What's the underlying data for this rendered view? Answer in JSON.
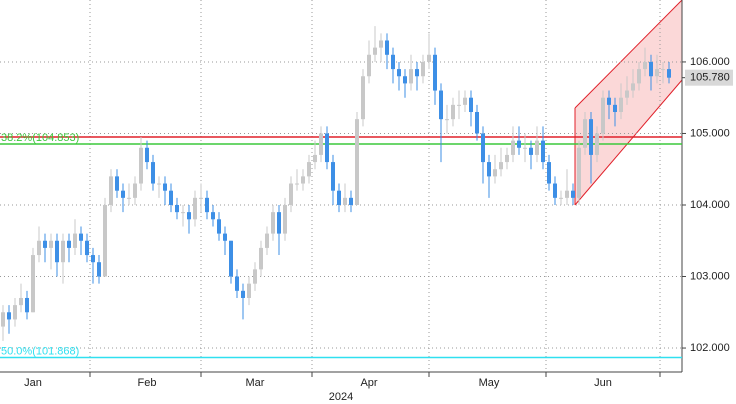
{
  "chart_data": {
    "type": "candlestick",
    "open": [
      102.3,
      102.5,
      102.4,
      102.6,
      102.7,
      102.5,
      103.3,
      103.5,
      103.4,
      103.5,
      103.2,
      103.5,
      103.4,
      103.6,
      103.5,
      103.3,
      103.2,
      103.0,
      104.0,
      104.4,
      104.2,
      104.1,
      104.1,
      104.3,
      104.8,
      104.6,
      104.3,
      104.3,
      104.2,
      104.0,
      103.9,
      103.9,
      103.8,
      104.1,
      104.1,
      103.9,
      103.8,
      103.6,
      103.5,
      103.0,
      102.8,
      102.7,
      102.9,
      103.1,
      103.4,
      103.6,
      103.9,
      103.6,
      104.0,
      104.3,
      104.3,
      104.4,
      104.6,
      104.7,
      105.0,
      104.6,
      104.2,
      104.0,
      104.1,
      104.0,
      105.2,
      105.8,
      106.1,
      106.2,
      106.3,
      106.1,
      105.9,
      105.8,
      105.7,
      105.9,
      105.8,
      106.0,
      106.1,
      105.6,
      105.2,
      105.2,
      105.4,
      105.4,
      105.5,
      105.3,
      105.0,
      104.6,
      104.4,
      104.5,
      104.6,
      104.7,
      104.9,
      104.8,
      104.8,
      104.7,
      104.9,
      104.6,
      104.3,
      104.1,
      104.1,
      104.2,
      104.1,
      104.8,
      105.2,
      104.7,
      105.0,
      105.5,
      105.4,
      105.3,
      105.5,
      105.6,
      105.7,
      105.9,
      106.0,
      105.8,
      105.9,
      105.9
    ],
    "high": [
      102.6,
      102.6,
      102.7,
      102.9,
      102.8,
      103.4,
      103.7,
      103.6,
      103.6,
      103.6,
      103.6,
      103.6,
      103.8,
      103.7,
      103.6,
      103.4,
      103.3,
      104.1,
      104.5,
      104.5,
      104.3,
      104.3,
      104.4,
      104.95,
      104.9,
      104.7,
      104.4,
      104.4,
      104.3,
      104.1,
      104.0,
      104.0,
      104.2,
      104.3,
      104.2,
      104.0,
      103.9,
      103.7,
      103.5,
      103.1,
      102.9,
      103.0,
      103.2,
      103.5,
      103.7,
      104.0,
      104.0,
      104.1,
      104.4,
      104.5,
      104.5,
      104.7,
      104.9,
      105.1,
      105.1,
      104.7,
      104.3,
      104.3,
      104.2,
      105.3,
      105.9,
      106.3,
      106.5,
      106.4,
      106.4,
      106.2,
      106.0,
      105.9,
      106.1,
      106.0,
      106.1,
      106.4,
      106.2,
      105.7,
      105.4,
      105.5,
      105.6,
      105.6,
      105.6,
      105.4,
      105.1,
      104.7,
      104.7,
      104.8,
      104.8,
      105.1,
      105.1,
      105.0,
      104.9,
      105.1,
      105.1,
      104.7,
      104.4,
      104.2,
      104.5,
      104.3,
      104.9,
      105.3,
      105.3,
      105.1,
      105.6,
      105.6,
      105.5,
      105.7,
      105.8,
      105.9,
      106.0,
      106.2,
      106.1,
      106.1,
      106.0,
      106.0
    ],
    "low": [
      102.1,
      102.2,
      102.3,
      102.5,
      102.4,
      102.5,
      103.2,
      103.2,
      103.1,
      103.0,
      102.9,
      103.2,
      103.3,
      103.3,
      103.2,
      102.9,
      102.9,
      103.0,
      103.9,
      104.1,
      103.9,
      104.0,
      104.0,
      104.2,
      104.5,
      104.2,
      104.1,
      104.0,
      103.9,
      103.8,
      103.7,
      103.6,
      103.7,
      103.9,
      103.8,
      103.7,
      103.5,
      103.3,
      102.9,
      102.7,
      102.4,
      102.6,
      102.8,
      103.0,
      103.3,
      103.5,
      103.3,
      103.5,
      103.9,
      104.2,
      104.2,
      104.3,
      104.5,
      104.6,
      104.5,
      104.0,
      103.9,
      103.9,
      103.9,
      104.0,
      105.1,
      105.7,
      106.0,
      106.0,
      105.9,
      105.7,
      105.6,
      105.5,
      105.6,
      105.6,
      105.7,
      105.9,
      105.4,
      104.6,
      105.0,
      105.1,
      105.2,
      105.3,
      105.1,
      104.9,
      104.3,
      104.1,
      104.3,
      104.4,
      104.5,
      104.6,
      104.7,
      104.6,
      104.5,
      104.6,
      104.5,
      104.2,
      104.0,
      104.0,
      104.0,
      104.0,
      104.0,
      104.7,
      104.3,
      104.6,
      104.9,
      105.2,
      105.1,
      105.2,
      105.4,
      105.5,
      105.6,
      105.8,
      105.6,
      105.7,
      105.7,
      105.7
    ],
    "close": [
      102.5,
      102.4,
      102.6,
      102.7,
      102.5,
      103.3,
      103.5,
      103.4,
      103.5,
      103.2,
      103.5,
      103.4,
      103.6,
      103.5,
      103.3,
      103.2,
      103.0,
      104.0,
      104.4,
      104.2,
      104.1,
      104.1,
      104.3,
      104.8,
      104.6,
      104.3,
      104.3,
      104.2,
      104.0,
      103.9,
      103.9,
      103.8,
      104.1,
      104.1,
      103.9,
      103.8,
      103.6,
      103.5,
      103.0,
      102.8,
      102.7,
      102.9,
      103.1,
      103.4,
      103.6,
      103.9,
      103.6,
      104.0,
      104.3,
      104.3,
      104.4,
      104.6,
      104.7,
      105.0,
      104.6,
      104.2,
      104.0,
      104.1,
      104.0,
      105.2,
      105.8,
      106.1,
      106.2,
      106.3,
      106.1,
      105.9,
      105.8,
      105.7,
      105.9,
      105.8,
      106.0,
      106.1,
      105.6,
      105.2,
      105.2,
      105.4,
      105.4,
      105.5,
      105.3,
      105.0,
      104.6,
      104.4,
      104.5,
      104.6,
      104.7,
      104.9,
      104.8,
      104.8,
      104.7,
      104.9,
      104.6,
      104.3,
      104.1,
      104.1,
      104.2,
      104.1,
      104.8,
      105.2,
      104.7,
      105.0,
      105.5,
      105.4,
      105.3,
      105.5,
      105.6,
      105.7,
      105.9,
      106.0,
      105.8,
      105.9,
      105.9,
      105.78
    ],
    "up_color": "#c8c8c8",
    "down_color": "#3d8fe6",
    "xticks": [
      {
        "value": 5,
        "label": "Jan"
      },
      {
        "value": 24,
        "label": "Feb"
      },
      {
        "value": 42,
        "label": "Mar"
      },
      {
        "value": 61,
        "label": "Apr"
      },
      {
        "value": 81,
        "label": "May"
      },
      {
        "value": 100,
        "label": "Jun"
      }
    ],
    "xlabel": "2024",
    "ylim": [
      101.665,
      106.866
    ],
    "yticks": [
      {
        "value": 102,
        "label": "102.000"
      },
      {
        "value": 103,
        "label": "103.000"
      },
      {
        "value": 104,
        "label": "104.000"
      },
      {
        "value": 105,
        "label": "105.000"
      },
      {
        "value": 106,
        "label": "106.000"
      }
    ],
    "levels": [
      {
        "value": 104.95,
        "color": "#e0202a"
      },
      {
        "value": 104.853,
        "label": "38.2%(104.853)",
        "color": "#3cc83c"
      },
      {
        "value": 101.868,
        "label": "50.0%(101.868)",
        "color": "#30e0f0"
      }
    ],
    "last_price": {
      "value": 105.78,
      "label": "105.780"
    },
    "grid": true
  }
}
